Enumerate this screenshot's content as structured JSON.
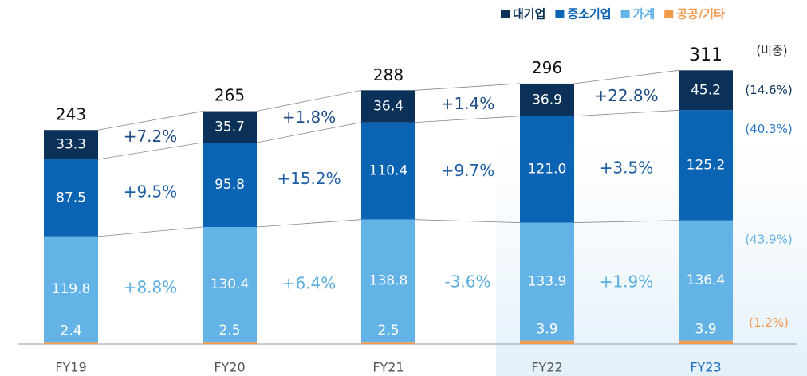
{
  "chart_data": {
    "type": "stacked_bar",
    "categories": [
      "FY19",
      "FY20",
      "FY21",
      "FY22",
      "FY23"
    ],
    "series": [
      {
        "name": "대기업",
        "color": "#0b3158",
        "values": [
          33.3,
          35.7,
          36.4,
          36.9,
          45.2
        ],
        "growth_labels": [
          "+7.2%",
          "+1.8%",
          "+1.4%",
          "+22.8%"
        ],
        "share_label": "(14.6%)"
      },
      {
        "name": "중소기업",
        "color": "#0a63b3",
        "values": [
          87.5,
          95.8,
          110.4,
          121,
          125.2
        ],
        "value_labels": [
          "87.5",
          "95.8",
          "110.4",
          "121.0",
          "125.2"
        ],
        "growth_labels": [
          "+9.5%",
          "+15.2%",
          "+9.7%",
          "+3.5%"
        ],
        "share_label": "(40.3%)"
      },
      {
        "name": "가계",
        "color": "#63b3e6",
        "values": [
          119.8,
          130.4,
          138.8,
          133.9,
          136.4
        ],
        "growth_labels": [
          "+8.8%",
          "+6.4%",
          "-3.6%",
          "+1.9%"
        ],
        "share_label": "(43.9%)"
      },
      {
        "name": "공공/기타",
        "color": "#f39a4f",
        "values": [
          2.4,
          2.5,
          2.5,
          3.9,
          3.9
        ],
        "share_label": "(1.2%)"
      }
    ],
    "totals": [
      243,
      265,
      288,
      296,
      311
    ],
    "share_header": "(비중)"
  }
}
